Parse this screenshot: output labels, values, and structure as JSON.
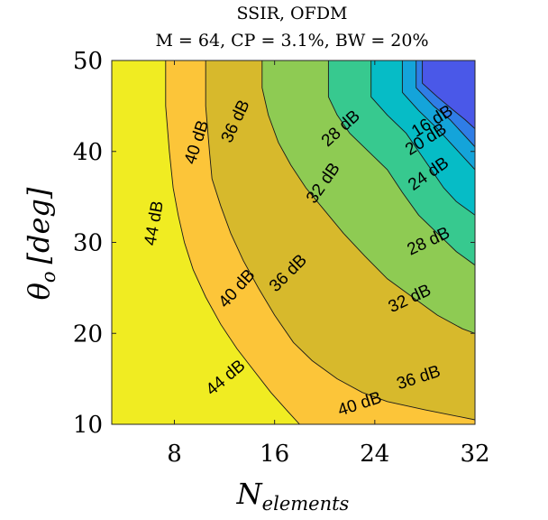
{
  "chart_data": {
    "type": "contour",
    "title": "SSIR, OFDM",
    "subtitle": "M = 64, CP = 3.1%, BW = 20%",
    "xlabel": "N",
    "xlabel_sub": "elements",
    "ylabel": "θ",
    "ylabel_sub": "o",
    "ylabel_unit": "[deg]",
    "xlim": [
      3,
      32
    ],
    "ylim": [
      10,
      50
    ],
    "xticks": [
      "8",
      "16",
      "24",
      "32"
    ],
    "yticks": [
      "10",
      "20",
      "30",
      "40",
      "50"
    ],
    "grid": false,
    "colormap": "parula",
    "levels": [
      {
        "value": 16,
        "label": "16 dB",
        "color": "#4a58e8"
      },
      {
        "value": 20,
        "label": "20 dB",
        "color": "#2f7de6"
      },
      {
        "value": 24,
        "label": "24 dB",
        "color": "#14a4da"
      },
      {
        "value": 28,
        "label": "28 dB",
        "color": "#06bcc6"
      },
      {
        "value": 32,
        "label": "32 dB",
        "color": "#37c98f"
      },
      {
        "value": 36,
        "label": "36 dB",
        "color": "#8ecb53"
      },
      {
        "value": 40,
        "label": "40 dB",
        "color": "#d7b92c"
      },
      {
        "value": 44,
        "label": "44 dB",
        "color": "#fcc539"
      }
    ],
    "background_color": "#f0ec22",
    "contours": [
      {
        "level": 44,
        "points": [
          [
            7.3,
            50
          ],
          [
            7.3,
            45
          ],
          [
            7.6,
            40
          ],
          [
            7.9,
            36
          ],
          [
            8.3,
            33
          ],
          [
            8.8,
            30
          ],
          [
            9.5,
            27
          ],
          [
            10.5,
            24
          ],
          [
            11.7,
            21
          ],
          [
            13,
            18.3
          ],
          [
            14.3,
            16
          ],
          [
            15.7,
            13.5
          ],
          [
            17,
            11.5
          ],
          [
            18,
            10
          ]
        ]
      },
      {
        "level": 40,
        "points": [
          [
            10.5,
            50
          ],
          [
            10.5,
            45
          ],
          [
            10.8,
            40
          ],
          [
            11,
            37
          ],
          [
            11.7,
            34
          ],
          [
            12.5,
            31
          ],
          [
            13.5,
            28
          ],
          [
            14.7,
            25
          ],
          [
            16,
            22
          ],
          [
            17.5,
            19
          ],
          [
            19,
            17
          ],
          [
            21,
            15
          ],
          [
            23,
            13.5
          ],
          [
            25,
            12.5
          ],
          [
            28,
            11.6
          ],
          [
            32,
            10.5
          ]
        ]
      },
      {
        "level": 36,
        "points": [
          [
            15,
            50
          ],
          [
            15,
            47
          ],
          [
            15.5,
            44
          ],
          [
            16.3,
            41
          ],
          [
            17.3,
            38.5
          ],
          [
            18.5,
            36
          ],
          [
            20,
            33.5
          ],
          [
            21.5,
            31
          ],
          [
            23.2,
            28.5
          ],
          [
            25,
            26
          ],
          [
            27,
            24
          ],
          [
            29,
            22
          ],
          [
            31,
            20.5
          ],
          [
            32,
            20
          ]
        ]
      },
      {
        "level": 32,
        "points": [
          [
            20.3,
            50
          ],
          [
            20.3,
            46
          ],
          [
            21,
            44
          ],
          [
            22,
            42
          ],
          [
            23.5,
            40
          ],
          [
            25,
            38
          ],
          [
            26.2,
            35.5
          ],
          [
            27.5,
            33
          ],
          [
            29,
            31
          ],
          [
            30.5,
            29
          ],
          [
            32,
            27.5
          ]
        ]
      },
      {
        "level": 28,
        "points": [
          [
            23.7,
            50
          ],
          [
            23.7,
            46
          ],
          [
            25,
            44
          ],
          [
            26.5,
            42
          ],
          [
            27.5,
            40
          ],
          [
            28.5,
            38
          ],
          [
            29.5,
            36
          ],
          [
            30.5,
            34.5
          ],
          [
            32,
            33
          ]
        ]
      },
      {
        "level": 24,
        "points": [
          [
            26.2,
            50
          ],
          [
            26.2,
            46.5
          ],
          [
            27.5,
            44.5
          ],
          [
            29,
            42.5
          ],
          [
            30,
            41
          ],
          [
            31,
            39.5
          ],
          [
            32,
            38
          ]
        ]
      },
      {
        "level": 20,
        "points": [
          [
            27.3,
            50
          ],
          [
            27.3,
            47
          ],
          [
            28.7,
            45
          ],
          [
            30,
            43.5
          ],
          [
            31,
            42
          ],
          [
            32,
            40.5
          ]
        ]
      },
      {
        "level": 16,
        "points": [
          [
            27.8,
            50
          ],
          [
            27.8,
            47.5
          ],
          [
            29,
            46
          ],
          [
            30.3,
            44.5
          ],
          [
            31.2,
            43.5
          ],
          [
            32,
            42.5
          ]
        ]
      }
    ],
    "contour_labels": [
      {
        "text": "16 dB",
        "x": 28.6,
        "y": 43.3,
        "angle": -32
      },
      {
        "text": "20 dB",
        "x": 28.1,
        "y": 41.3,
        "angle": -32
      },
      {
        "text": "24 dB",
        "x": 28.3,
        "y": 37.5,
        "angle": -35
      },
      {
        "text": "28 dB",
        "x": 21.3,
        "y": 42.5,
        "angle": -42
      },
      {
        "text": "28 dB",
        "x": 28.3,
        "y": 30.1,
        "angle": -25
      },
      {
        "text": "32 dB",
        "x": 19.9,
        "y": 36.5,
        "angle": -55
      },
      {
        "text": "32 dB",
        "x": 26.8,
        "y": 23.8,
        "angle": -25
      },
      {
        "text": "36 dB",
        "x": 12.9,
        "y": 43.3,
        "angle": -65
      },
      {
        "text": "36 dB",
        "x": 17.1,
        "y": 26.6,
        "angle": -45
      },
      {
        "text": "36 dB",
        "x": 27.5,
        "y": 15.1,
        "angle": -18
      },
      {
        "text": "40 dB",
        "x": 9.8,
        "y": 41.0,
        "angle": -72
      },
      {
        "text": "40 dB",
        "x": 13.0,
        "y": 24.9,
        "angle": -48
      },
      {
        "text": "40 dB",
        "x": 22.8,
        "y": 12.2,
        "angle": -18
      },
      {
        "text": "44 dB",
        "x": 6.4,
        "y": 32.1,
        "angle": -80
      },
      {
        "text": "44 dB",
        "x": 12.1,
        "y": 15.1,
        "angle": -40
      }
    ]
  }
}
